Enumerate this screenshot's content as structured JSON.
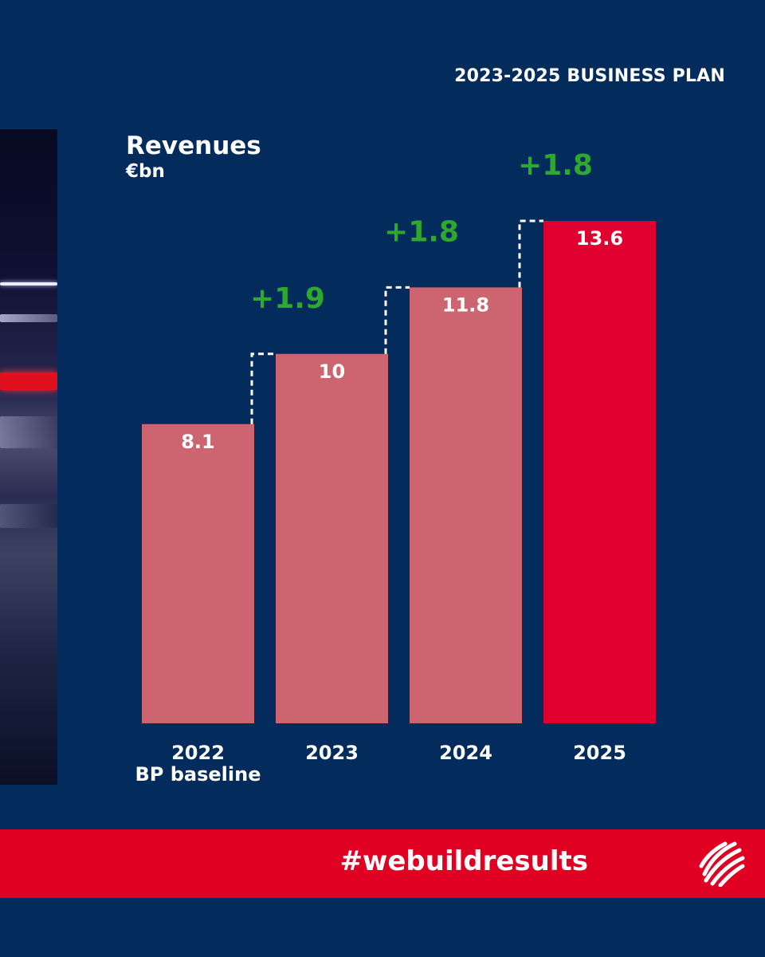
{
  "header": {
    "plan_title": "2023-2025 BUSINESS PLAN"
  },
  "chart_data": {
    "type": "bar",
    "title": "Revenues",
    "ylabel": "€bn",
    "categories": [
      {
        "year": "2022",
        "sub": "BP baseline"
      },
      {
        "year": "2023",
        "sub": ""
      },
      {
        "year": "2024",
        "sub": ""
      },
      {
        "year": "2025",
        "sub": ""
      }
    ],
    "values": [
      8.1,
      10,
      11.8,
      13.6
    ],
    "value_labels": [
      "8.1",
      "10",
      "11.8",
      "13.6"
    ],
    "increments": [
      "+1.9",
      "+1.8",
      "+1.8"
    ],
    "ylim": [
      0,
      13.6
    ],
    "colors": {
      "bar": "#cd6570",
      "highlight_bar": "#df0030",
      "increment": "#2ea82e",
      "connector": "#ffffff"
    }
  },
  "footer": {
    "hashtag": "#webuildresults"
  },
  "logo": {
    "icon": "webuild-sphere-icon"
  }
}
